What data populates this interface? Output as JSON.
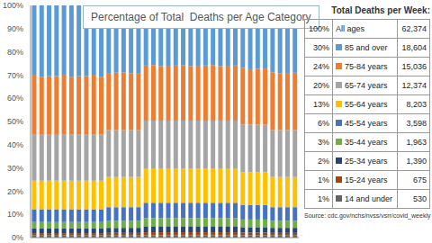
{
  "chart_data": {
    "type": "bar",
    "title": "Percentage of Total  Deaths per Age Category",
    "stacked": true,
    "grid": false,
    "tick_labels": "y",
    "categories": [
      null,
      null,
      null,
      null,
      null,
      null,
      null,
      null,
      null,
      null,
      null,
      null,
      null,
      null,
      null,
      null,
      null,
      null,
      null,
      null,
      null,
      null,
      null,
      null,
      null,
      null,
      null,
      null,
      null,
      null,
      null,
      null,
      null,
      null,
      null,
      null
    ],
    "ylim": [
      0,
      100
    ],
    "yticks": [
      {
        "value": 0,
        "label": "0%"
      },
      {
        "value": 10,
        "label": "10%"
      },
      {
        "value": 20,
        "label": "20%"
      },
      {
        "value": 30,
        "label": "30%"
      },
      {
        "value": 40,
        "label": "40%"
      },
      {
        "value": 50,
        "label": "50%"
      },
      {
        "value": 60,
        "label": "60%"
      },
      {
        "value": 70,
        "label": "70%"
      },
      {
        "value": 80,
        "label": "80%"
      },
      {
        "value": 90,
        "label": "90%"
      },
      {
        "value": 100,
        "label": "100%"
      }
    ],
    "series": [
      {
        "name": "14 and under",
        "color": "#636363",
        "values": [
          0.9,
          0.9,
          0.9,
          0.9,
          0.9,
          0.9,
          0.9,
          0.9,
          0.9,
          0.9,
          0.9,
          0.9,
          0.9,
          0.9,
          0.9,
          1.0,
          1.0,
          1.0,
          1.0,
          1.0,
          1.0,
          1.0,
          1.0,
          1.0,
          1.0,
          1.0,
          1.0,
          1.0,
          0.9,
          0.9,
          0.9,
          0.9,
          0.9,
          0.9,
          0.9,
          0.9
        ]
      },
      {
        "name": "15-24 years",
        "color": "#9e480e",
        "values": [
          1.0,
          1.0,
          1.0,
          1.0,
          1.0,
          1.0,
          1.0,
          1.0,
          1.0,
          1.0,
          1.1,
          1.1,
          1.1,
          1.1,
          1.1,
          1.3,
          1.3,
          1.3,
          1.3,
          1.3,
          1.3,
          1.3,
          1.3,
          1.3,
          1.3,
          1.3,
          1.3,
          1.3,
          1.2,
          1.2,
          1.2,
          1.2,
          1.1,
          1.1,
          1.1,
          1.1
        ]
      },
      {
        "name": "25-34 years",
        "color": "#264478",
        "values": [
          2.0,
          2.0,
          2.0,
          2.0,
          2.0,
          2.0,
          2.0,
          2.0,
          2.0,
          2.0,
          2.2,
          2.2,
          2.2,
          2.2,
          2.2,
          2.6,
          2.6,
          2.6,
          2.6,
          2.6,
          2.6,
          2.6,
          2.6,
          2.6,
          2.6,
          2.6,
          2.6,
          2.6,
          2.4,
          2.4,
          2.4,
          2.4,
          2.2,
          2.2,
          2.2,
          2.2
        ]
      },
      {
        "name": "35-44 years",
        "color": "#70ad47",
        "values": [
          2.8,
          2.8,
          2.8,
          2.8,
          2.8,
          2.8,
          2.8,
          2.8,
          2.8,
          2.8,
          3.0,
          3.0,
          3.0,
          3.0,
          3.0,
          3.5,
          3.5,
          3.5,
          3.5,
          3.5,
          3.5,
          3.5,
          3.5,
          3.5,
          3.5,
          3.5,
          3.5,
          3.5,
          3.3,
          3.3,
          3.3,
          3.3,
          3.0,
          3.0,
          3.0,
          3.0
        ]
      },
      {
        "name": "45-54 years",
        "color": "#4472c4",
        "values": [
          5.5,
          5.5,
          5.5,
          5.5,
          5.5,
          5.5,
          5.5,
          5.5,
          5.5,
          5.5,
          5.9,
          5.9,
          5.9,
          5.9,
          5.9,
          6.6,
          6.6,
          6.6,
          6.6,
          6.6,
          6.6,
          6.6,
          6.6,
          6.6,
          6.6,
          6.6,
          6.6,
          6.6,
          6.3,
          6.3,
          6.3,
          6.3,
          5.9,
          5.9,
          5.9,
          5.9
        ]
      },
      {
        "name": "55-64 years",
        "color": "#ffc000",
        "values": [
          12.3,
          12.3,
          12.3,
          12.3,
          12.3,
          12.3,
          12.3,
          12.3,
          12.3,
          12.3,
          13.0,
          13.0,
          13.0,
          13.0,
          13.0,
          14.6,
          14.6,
          14.6,
          14.6,
          14.6,
          14.6,
          14.6,
          14.6,
          14.6,
          14.6,
          14.6,
          14.6,
          14.6,
          14.0,
          14.0,
          14.0,
          14.0,
          13.0,
          13.0,
          13.0,
          13.0
        ]
      },
      {
        "name": "65-74 years",
        "color": "#a5a5a5",
        "values": [
          19.8,
          19.8,
          19.8,
          19.8,
          19.8,
          19.8,
          19.8,
          19.8,
          19.8,
          19.8,
          20.2,
          20.2,
          20.2,
          20.2,
          20.2,
          20.8,
          20.8,
          20.8,
          20.8,
          20.8,
          20.8,
          20.8,
          20.8,
          20.8,
          20.8,
          20.8,
          20.8,
          20.8,
          20.6,
          20.6,
          20.6,
          20.6,
          20.2,
          20.2,
          20.2,
          20.2
        ]
      },
      {
        "name": "75-84 years",
        "color": "#ed7d31",
        "values": [
          25.5,
          25.0,
          25.2,
          25.3,
          25.5,
          25.0,
          25.2,
          25.3,
          25.5,
          25.0,
          24.6,
          24.7,
          24.9,
          24.4,
          24.6,
          23.7,
          23.9,
          23.4,
          23.6,
          23.7,
          23.9,
          23.4,
          23.6,
          23.7,
          23.9,
          23.4,
          23.6,
          23.7,
          24.3,
          23.8,
          24.0,
          24.1,
          24.9,
          24.4,
          24.6,
          24.7
        ]
      },
      {
        "name": "85 and over",
        "color": "#5b9bd5",
        "values": [
          30.2,
          30.7,
          30.5,
          30.4,
          30.2,
          30.7,
          30.5,
          30.4,
          30.2,
          30.7,
          29.1,
          29.0,
          28.8,
          29.3,
          29.1,
          25.9,
          25.7,
          26.2,
          26.0,
          25.9,
          25.7,
          26.2,
          26.0,
          25.9,
          25.7,
          26.2,
          26.0,
          25.9,
          27.0,
          27.5,
          27.3,
          27.2,
          28.8,
          29.3,
          29.1,
          29.0
        ]
      }
    ]
  },
  "table": {
    "title": "Total Deaths per Week:",
    "header": {
      "percent": "100%",
      "label": "All ages",
      "total": "62,374"
    },
    "rows": [
      {
        "percent": "30%",
        "label": "85 and over",
        "total": "18,604"
      },
      {
        "percent": "24%",
        "label": "75-84 years",
        "total": "15,036"
      },
      {
        "percent": "20%",
        "label": "65-74 years",
        "total": "12,374"
      },
      {
        "percent": "13%",
        "label": "55-64 years",
        "total": "8,203"
      },
      {
        "percent": "6%",
        "label": "45-54 years",
        "total": "3,598"
      },
      {
        "percent": "3%",
        "label": "35-44 years",
        "total": "1,963"
      },
      {
        "percent": "2%",
        "label": "25-34 years",
        "total": "1,390"
      },
      {
        "percent": "1%",
        "label": "15-24 years",
        "total": "675"
      },
      {
        "percent": "1%",
        "label": "14 and under",
        "total": "530"
      }
    ]
  },
  "source": "Source: cdc.gov/nchs/nvss/vsrr/covid_weekly"
}
